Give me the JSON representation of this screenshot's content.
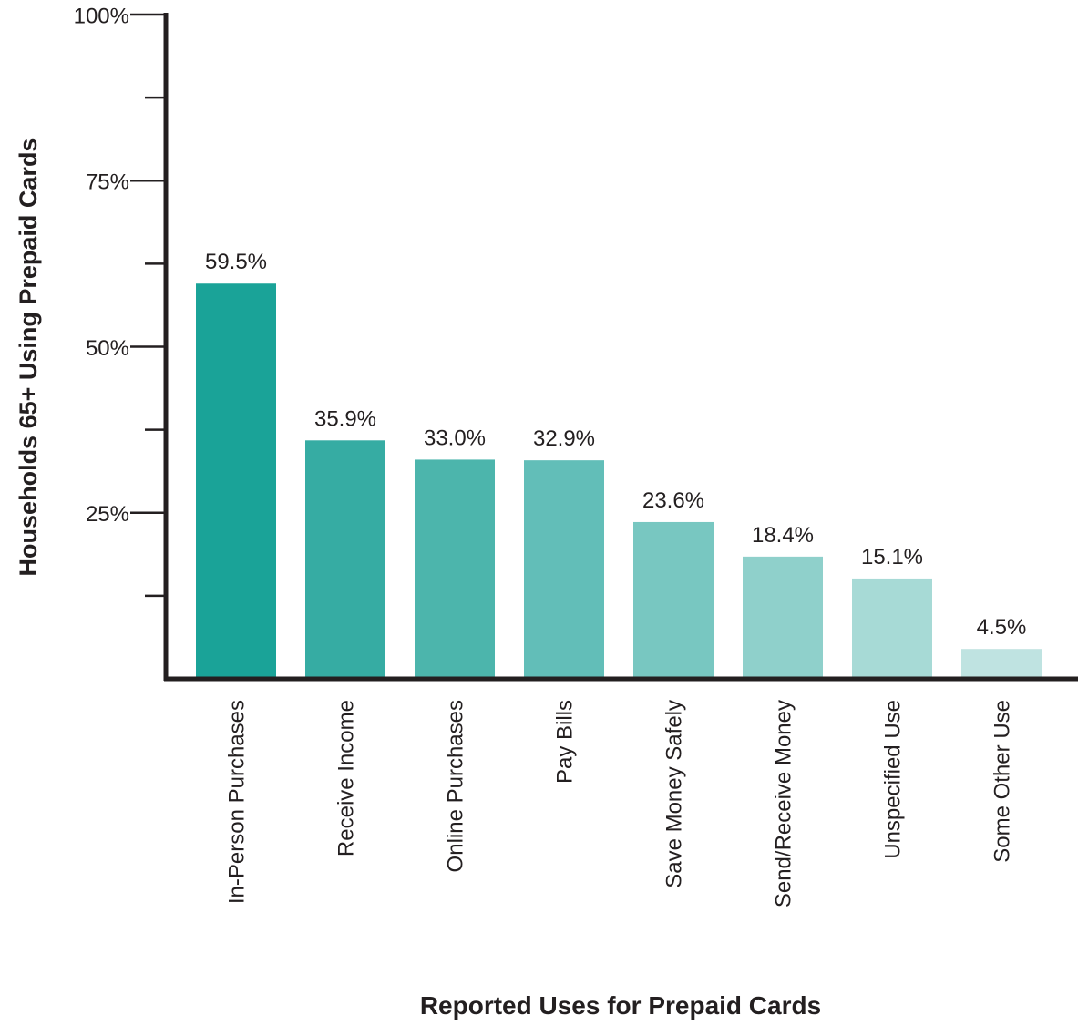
{
  "chart_data": {
    "type": "bar",
    "title": "",
    "xlabel": "Reported Uses for Prepaid Cards",
    "ylabel": "Households 65+ Using Prepaid Cards",
    "ylim": [
      0,
      100
    ],
    "y_ticks": [
      {
        "value": 100,
        "label": "100%"
      },
      {
        "value": 75,
        "label": "75%"
      },
      {
        "value": 50,
        "label": "50%"
      },
      {
        "value": 25,
        "label": "25%"
      }
    ],
    "y_minor_ticks": [
      87.5,
      62.5,
      37.5,
      12.5
    ],
    "grid": false,
    "categories": [
      "In-Person Purchases",
      "Receive Income",
      "Online Purchases",
      "Pay Bills",
      "Save Money Safely",
      "Send/Receive Money",
      "Unspecified Use",
      "Some Other Use"
    ],
    "values": [
      59.5,
      35.9,
      33.0,
      32.9,
      23.6,
      18.4,
      15.1,
      4.5
    ],
    "data_labels": [
      "59.5%",
      "35.9%",
      "33.0%",
      "32.9%",
      "23.6%",
      "18.4%",
      "15.1%",
      "4.5%"
    ],
    "colors": [
      "#1aa398",
      "#36aca3",
      "#4cb5ac",
      "#62beb8",
      "#78c7c1",
      "#8fd0cb",
      "#a7dad6",
      "#bfe3e1"
    ]
  }
}
